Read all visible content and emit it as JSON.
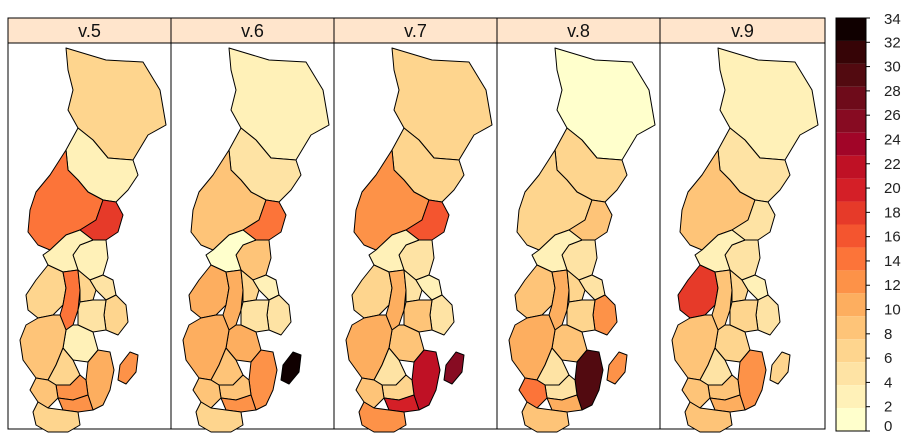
{
  "panels": [
    {
      "label": "v.5",
      "regions": {
        "norrbotten": 6,
        "vasterbotten": 2,
        "jamtland": 15,
        "vasternorrland": 17,
        "gavleborg": 3,
        "dalarna": 3,
        "varmland": 7,
        "orebro": 15,
        "vastmanland": 7,
        "uppsala": 5,
        "stockholm": 7,
        "sodermanland": 5,
        "ostergotland": 3,
        "vastra_gotaland": 9,
        "jonkoping": 7,
        "kalmar": 11,
        "kronoberg": 13,
        "halland": 9,
        "blekinge": 13,
        "skane": 7,
        "gotland": 12
      }
    },
    {
      "label": "v.6",
      "regions": {
        "norrbotten": 3,
        "vasterbotten": 5,
        "jamtland": 9,
        "vasternorrland": 14,
        "gavleborg": 9,
        "dalarna": 1,
        "varmland": 11,
        "orebro": 11,
        "vastmanland": 7,
        "uppsala": 3,
        "stockholm": 5,
        "sodermanland": 5,
        "ostergotland": 11,
        "vastra_gotaland": 11,
        "jonkoping": 9,
        "kalmar": 13,
        "kronoberg": 9,
        "halland": 9,
        "blekinge": 13,
        "skane": 7,
        "gotland": 35
      }
    },
    {
      "label": "v.7",
      "regions": {
        "norrbotten": 7,
        "vasterbotten": 7,
        "jamtland": 12,
        "vasternorrland": 16,
        "gavleborg": 5,
        "dalarna": 3,
        "varmland": 7,
        "orebro": 11,
        "vastmanland": 5,
        "uppsala": 3,
        "stockholm": 5,
        "sodermanland": 9,
        "ostergotland": 9,
        "vastra_gotaland": 11,
        "jonkoping": 5,
        "kalmar": 21,
        "kronoberg": 7,
        "halland": 9,
        "blekinge": 19,
        "skane": 13,
        "gotland": 26
      }
    },
    {
      "label": "v.8",
      "regions": {
        "norrbotten": 1,
        "vasterbotten": 7,
        "jamtland": 7,
        "vasternorrland": 8,
        "gavleborg": 5,
        "dalarna": 3,
        "varmland": 9,
        "orebro": 11,
        "vastmanland": 7,
        "uppsala": 5,
        "stockholm": 13,
        "sodermanland": 7,
        "ostergotland": 9,
        "vastra_gotaland": 11,
        "jonkoping": 5,
        "kalmar": 29,
        "kronoberg": 5,
        "halland": 15,
        "blekinge": 11,
        "skane": 9,
        "gotland": 12
      }
    },
    {
      "label": "v.9",
      "regions": {
        "norrbotten": 3,
        "vasterbotten": 5,
        "jamtland": 9,
        "vasternorrland": 5,
        "gavleborg": 5,
        "dalarna": 3,
        "varmland": 17,
        "orebro": 9,
        "vastmanland": 7,
        "uppsala": 3,
        "stockholm": 5,
        "sodermanland": 7,
        "ostergotland": 7,
        "vastra_gotaland": 9,
        "jonkoping": 5,
        "kalmar": 12,
        "kronoberg": 9,
        "halland": 9,
        "blekinge": 11,
        "skane": 9,
        "gotland": 7
      }
    }
  ],
  "legend": {
    "ticks": [
      "0",
      "2",
      "4",
      "6",
      "8",
      "10",
      "12",
      "14",
      "16",
      "18",
      "20",
      "22",
      "24",
      "26",
      "28",
      "30",
      "32",
      "34"
    ],
    "min": 0,
    "max": 34,
    "colors": [
      "#ffffcc",
      "#fff1b8",
      "#fee3a4",
      "#fed58e",
      "#fec478",
      "#fdae5f",
      "#fd9248",
      "#fc7439",
      "#f4552f",
      "#e63a29",
      "#d41f27",
      "#bf1125",
      "#a10528",
      "#870b22",
      "#6e0b1a",
      "#520a10",
      "#360406",
      "#100000"
    ]
  },
  "strip_color": "#ffe5cc"
}
